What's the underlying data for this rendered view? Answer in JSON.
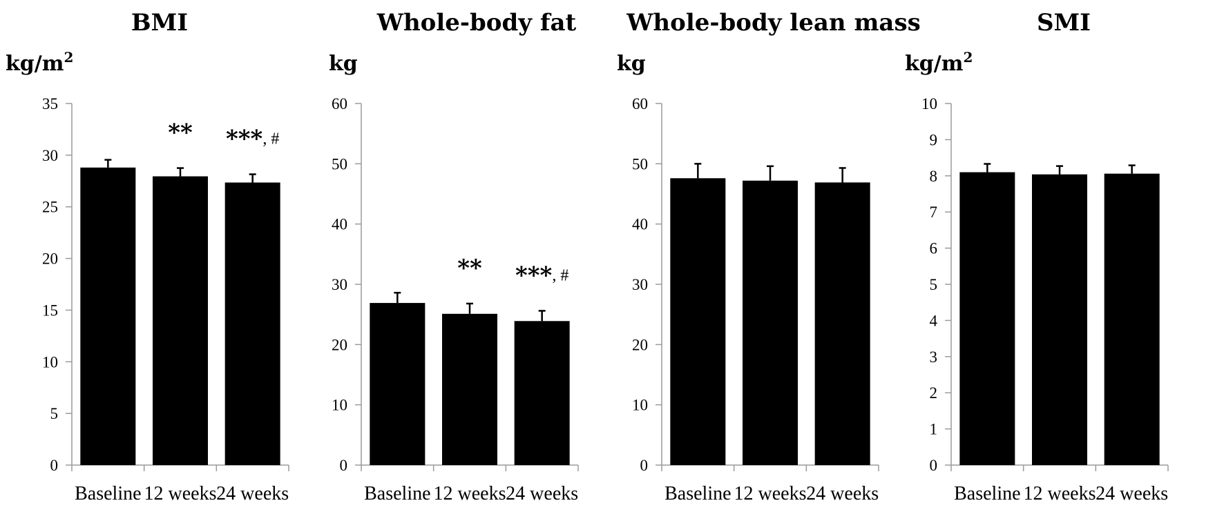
{
  "chart_data": [
    {
      "type": "bar",
      "title": "BMI",
      "ylabel": "kg/m",
      "ylabel_sup": "2",
      "categories": [
        "Baseline",
        "12 weeks",
        "24 weeks"
      ],
      "values": [
        28.8,
        27.95,
        27.35
      ],
      "errors": [
        0.75,
        0.8,
        0.8
      ],
      "ylim": [
        0,
        35
      ],
      "yticks": [
        0,
        5,
        10,
        15,
        20,
        25,
        30,
        35
      ],
      "annotations": [
        {
          "category": "12 weeks",
          "stars": "**",
          "hash": ""
        },
        {
          "category": "24 weeks",
          "stars": "***",
          "hash": ", #"
        }
      ]
    },
    {
      "type": "bar",
      "title": "Whole-body fat",
      "ylabel": "kg",
      "ylabel_sup": "",
      "categories": [
        "Baseline",
        "12 weeks",
        "24 weeks"
      ],
      "values": [
        26.9,
        25.1,
        23.9
      ],
      "errors": [
        1.7,
        1.7,
        1.7
      ],
      "ylim": [
        0,
        60
      ],
      "yticks": [
        0,
        10,
        20,
        30,
        40,
        50,
        60
      ],
      "annotations": [
        {
          "category": "12 weeks",
          "stars": "**",
          "hash": ""
        },
        {
          "category": "24 weeks",
          "stars": "***",
          "hash": ", #"
        }
      ]
    },
    {
      "type": "bar",
      "title": "Whole-body lean mass",
      "ylabel": "kg",
      "ylabel_sup": "",
      "categories": [
        "Baseline",
        "12 weeks",
        "24 weeks"
      ],
      "values": [
        47.6,
        47.2,
        46.9
      ],
      "errors": [
        2.4,
        2.4,
        2.4
      ],
      "ylim": [
        0,
        60
      ],
      "yticks": [
        0,
        10,
        20,
        30,
        40,
        50,
        60
      ],
      "annotations": []
    },
    {
      "type": "bar",
      "title": "SMI",
      "ylabel": "kg/m",
      "ylabel_sup": "2",
      "categories": [
        "Baseline",
        "12 weeks",
        "24 weeks"
      ],
      "values": [
        8.1,
        8.04,
        8.06
      ],
      "errors": [
        0.23,
        0.23,
        0.23
      ],
      "ylim": [
        0,
        10
      ],
      "yticks": [
        0,
        1,
        2,
        3,
        4,
        5,
        6,
        7,
        8,
        9,
        10
      ],
      "annotations": []
    }
  ]
}
